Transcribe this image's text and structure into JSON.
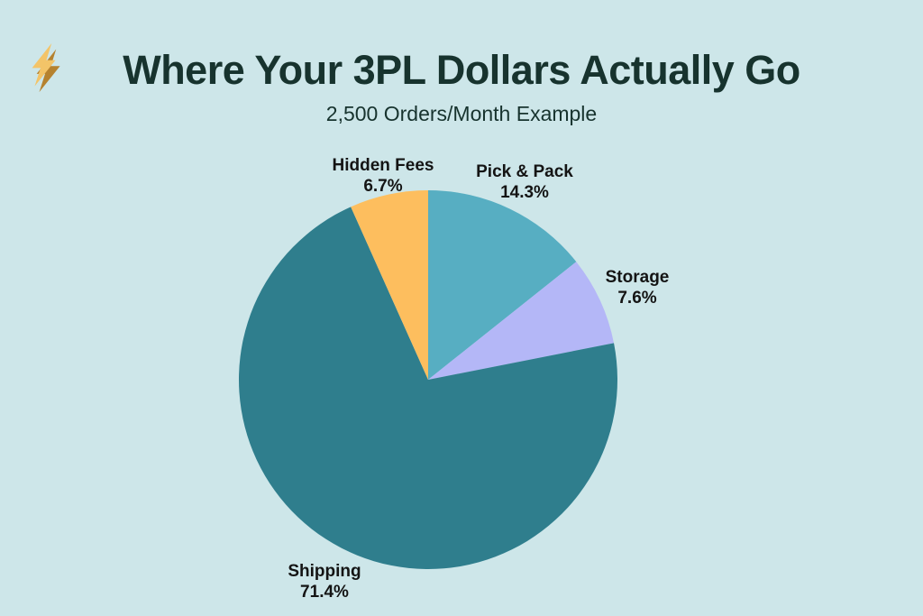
{
  "header": {
    "title": "Where Your 3PL Dollars Actually Go",
    "subtitle": "2,500 Orders/Month Example",
    "icon": "lightning-bolt-icon"
  },
  "colors": {
    "background": "#cde6e9",
    "title_text": "#17332e",
    "label_text": "#141414",
    "bolt_light": "#f3c468",
    "bolt_dark": "#b5822f"
  },
  "chart_data": {
    "type": "pie",
    "title": "Where Your 3PL Dollars Actually Go",
    "subtitle": "2,500 Orders/Month Example",
    "start_angle_deg": 0,
    "direction": "clockwise",
    "labels_position": "outside",
    "legend": "none",
    "slices": [
      {
        "label": "Pick & Pack",
        "value": 14.3,
        "pct_label": "14.3%",
        "color": "#57aec2"
      },
      {
        "label": "Storage",
        "value": 7.6,
        "pct_label": "7.6%",
        "color": "#b4b7f7"
      },
      {
        "label": "Shipping",
        "value": 71.4,
        "pct_label": "71.4%",
        "color": "#2f7e8d"
      },
      {
        "label": "Hidden Fees",
        "value": 6.7,
        "pct_label": "6.7%",
        "color": "#fdbe5e"
      }
    ]
  }
}
